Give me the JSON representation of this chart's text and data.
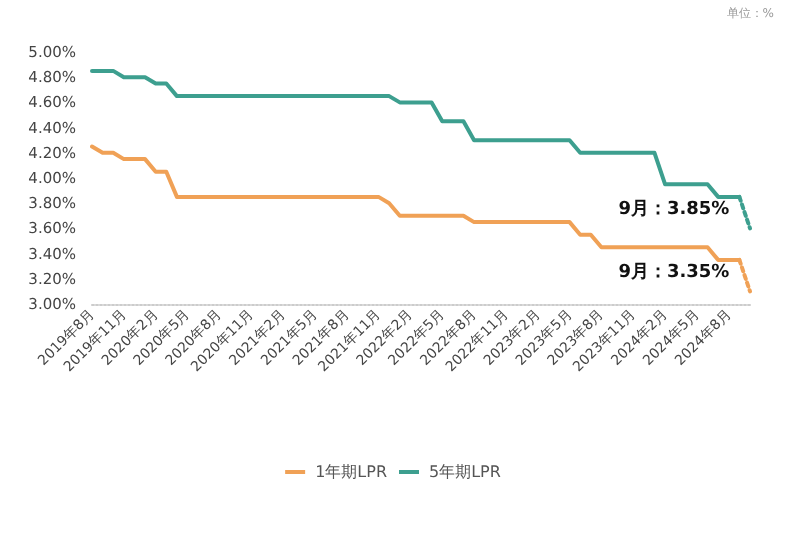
{
  "chart_data": {
    "type": "line",
    "categories": [
      "2019年8月",
      null,
      null,
      "2019年11月",
      null,
      null,
      "2020年2月",
      null,
      null,
      "2020年5月",
      null,
      null,
      "2020年8月",
      null,
      null,
      "2020年11月",
      null,
      null,
      "2021年2月",
      null,
      null,
      "2021年5月",
      null,
      null,
      "2021年8月",
      null,
      null,
      "2021年11月",
      null,
      null,
      "2022年2月",
      null,
      null,
      "2022年5月",
      null,
      null,
      "2022年8月",
      null,
      null,
      "2022年11月",
      null,
      null,
      "2023年2月",
      null,
      null,
      "2023年5月",
      null,
      null,
      "2023年8月",
      null,
      null,
      "2023年11月",
      null,
      null,
      "2024年2月",
      null,
      null,
      "2024年5月",
      null,
      null,
      "2024年8月",
      null,
      null
    ],
    "series": [
      {
        "name": "1年期LPR",
        "color": "#f0a156",
        "line_style": "solid",
        "values": [
          4.25,
          4.2,
          4.2,
          4.15,
          4.15,
          4.15,
          4.05,
          4.05,
          3.85,
          3.85,
          3.85,
          3.85,
          3.85,
          3.85,
          3.85,
          3.85,
          3.85,
          3.85,
          3.85,
          3.85,
          3.85,
          3.85,
          3.85,
          3.85,
          3.85,
          3.85,
          3.85,
          3.85,
          3.8,
          3.7,
          3.7,
          3.7,
          3.7,
          3.7,
          3.7,
          3.7,
          3.65,
          3.65,
          3.65,
          3.65,
          3.65,
          3.65,
          3.65,
          3.65,
          3.65,
          3.65,
          3.55,
          3.55,
          3.45,
          3.45,
          3.45,
          3.45,
          3.45,
          3.45,
          3.45,
          3.45,
          3.45,
          3.45,
          3.45,
          3.35,
          3.35,
          3.35,
          null
        ]
      },
      {
        "name": "5年期LPR",
        "color": "#3d9f8f",
        "line_style": "solid",
        "values": [
          4.85,
          4.85,
          4.85,
          4.8,
          4.8,
          4.8,
          4.75,
          4.75,
          4.65,
          4.65,
          4.65,
          4.65,
          4.65,
          4.65,
          4.65,
          4.65,
          4.65,
          4.65,
          4.65,
          4.65,
          4.65,
          4.65,
          4.65,
          4.65,
          4.65,
          4.65,
          4.65,
          4.65,
          4.65,
          4.6,
          4.6,
          4.6,
          4.6,
          4.45,
          4.45,
          4.45,
          4.3,
          4.3,
          4.3,
          4.3,
          4.3,
          4.3,
          4.3,
          4.3,
          4.3,
          4.3,
          4.2,
          4.2,
          4.2,
          4.2,
          4.2,
          4.2,
          4.2,
          4.2,
          3.95,
          3.95,
          3.95,
          3.95,
          3.95,
          3.85,
          3.85,
          3.85,
          null
        ]
      },
      {
        "color": "#f0a156",
        "line_style": "dotted",
        "values": [
          null,
          null,
          null,
          null,
          null,
          null,
          null,
          null,
          null,
          null,
          null,
          null,
          null,
          null,
          null,
          null,
          null,
          null,
          null,
          null,
          null,
          null,
          null,
          null,
          null,
          null,
          null,
          null,
          null,
          null,
          null,
          null,
          null,
          null,
          null,
          null,
          null,
          null,
          null,
          null,
          null,
          null,
          null,
          null,
          null,
          null,
          null,
          null,
          null,
          null,
          null,
          null,
          null,
          null,
          null,
          null,
          null,
          null,
          null,
          null,
          null,
          3.35,
          3.1
        ]
      },
      {
        "color": "#3d9f8f",
        "line_style": "dotted",
        "values": [
          null,
          null,
          null,
          null,
          null,
          null,
          null,
          null,
          null,
          null,
          null,
          null,
          null,
          null,
          null,
          null,
          null,
          null,
          null,
          null,
          null,
          null,
          null,
          null,
          null,
          null,
          null,
          null,
          null,
          null,
          null,
          null,
          null,
          null,
          null,
          null,
          null,
          null,
          null,
          null,
          null,
          null,
          null,
          null,
          null,
          null,
          null,
          null,
          null,
          null,
          null,
          null,
          null,
          null,
          null,
          null,
          null,
          null,
          null,
          null,
          null,
          3.85,
          3.6
        ]
      }
    ],
    "ylim": [
      3,
      5
    ],
    "yticks": [
      {
        "value": 3,
        "label": "3.00%"
      },
      {
        "value": 3.2,
        "label": "3.20%"
      },
      {
        "value": 3.4,
        "label": "3.40%"
      },
      {
        "value": 3.6,
        "label": "3.60%"
      },
      {
        "value": 3.8,
        "label": "3.80%"
      },
      {
        "value": 4,
        "label": "4.00%"
      },
      {
        "value": 4.2,
        "label": "4.20%"
      },
      {
        "value": 4.4,
        "label": "4.40%"
      },
      {
        "value": 4.6,
        "label": "4.60%"
      },
      {
        "value": 4.8,
        "label": "4.80%"
      },
      {
        "value": 5,
        "label": "5.00%"
      }
    ],
    "grid": false,
    "legend": "bottom",
    "marker": "none",
    "annotations": [
      "单位：%",
      "9月：3.85%",
      "9月：3.35%"
    ]
  }
}
